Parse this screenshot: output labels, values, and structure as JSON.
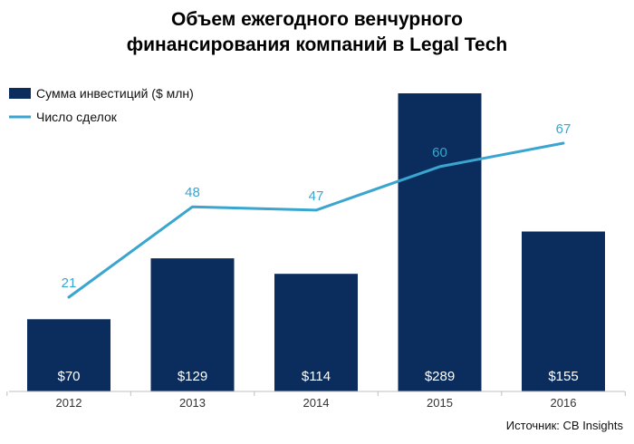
{
  "chart_data": {
    "type": "bar",
    "title_lines": [
      "Объем ежегодного венчурного",
      "финансирования компаний в Legal Tech"
    ],
    "categories": [
      "2012",
      "2013",
      "2014",
      "2015",
      "2016"
    ],
    "series": [
      {
        "name": "Сумма инвестиций ($ млн)",
        "type": "bar",
        "values": [
          70,
          129,
          114,
          289,
          155
        ],
        "labels": [
          "$70",
          "$129",
          "$114",
          "$289",
          "$155"
        ],
        "color": "#0a2d5e"
      },
      {
        "name": "Число сделок",
        "type": "line",
        "values": [
          21,
          48,
          47,
          60,
          67
        ],
        "labels": [
          "21",
          "48",
          "47",
          "60",
          "67"
        ],
        "color": "#3aa5cf"
      }
    ],
    "legend": "top-left",
    "source": "Источник: CB Insights"
  }
}
